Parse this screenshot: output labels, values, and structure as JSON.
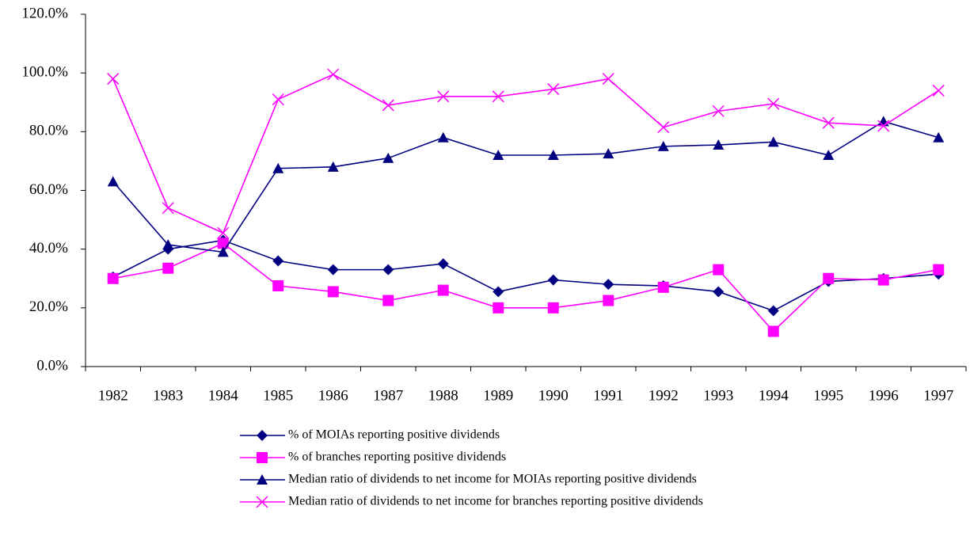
{
  "chart_data": {
    "type": "line",
    "categories": [
      "1982",
      "1983",
      "1984",
      "1985",
      "1986",
      "1987",
      "1988",
      "1989",
      "1990",
      "1991",
      "1992",
      "1993",
      "1994",
      "1995",
      "1996",
      "1997"
    ],
    "series": [
      {
        "name": "% of MOIAs reporting positive dividends",
        "color": "#000080",
        "marker": "diamond",
        "values": [
          30.5,
          40,
          43,
          36,
          33,
          33,
          35,
          25.5,
          29.5,
          28,
          27.5,
          25.5,
          19,
          29,
          30,
          31.5
        ]
      },
      {
        "name": "% of branches reporting positive dividends",
        "color": "#ff00ff",
        "marker": "square",
        "values": [
          30,
          33.5,
          42,
          27.5,
          25.5,
          22.5,
          26,
          20,
          20,
          22.5,
          27,
          33,
          12,
          30,
          29.5,
          33
        ]
      },
      {
        "name": "Median ratio of dividends to net income for MOIAs reporting positive dividends",
        "color": "#000080",
        "marker": "triangle",
        "values": [
          63,
          41.5,
          39,
          67.5,
          68,
          71,
          78,
          72,
          72,
          72.5,
          75,
          75.5,
          76.5,
          72,
          83.5,
          78
        ]
      },
      {
        "name": "Median ratio of dividends to net income for branches reporting positive dividends",
        "color": "#ff00ff",
        "marker": "x",
        "values": [
          98,
          54,
          45.5,
          91,
          99.5,
          89,
          92,
          92,
          94.5,
          98,
          81.5,
          87,
          89.5,
          83,
          82,
          94
        ]
      }
    ],
    "ylim": [
      0,
      120
    ],
    "yticks": [
      {
        "value": 0,
        "label": "0.0%"
      },
      {
        "value": 20,
        "label": "20.0%"
      },
      {
        "value": 40,
        "label": "40.0%"
      },
      {
        "value": 60,
        "label": "60.0%"
      },
      {
        "value": 80,
        "label": "80.0%"
      },
      {
        "value": 100,
        "label": "100.0%"
      },
      {
        "value": 120,
        "label": "120.0%"
      }
    ],
    "grid": false,
    "legend": "bottom"
  }
}
